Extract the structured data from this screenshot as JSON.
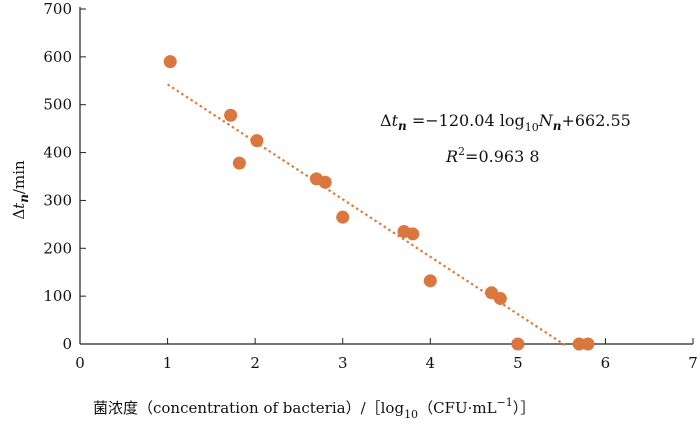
{
  "chart_data": {
    "type": "scatter",
    "xlim": [
      0,
      7
    ],
    "ylim": [
      0,
      700
    ],
    "x_ticks": [
      0,
      1,
      2,
      3,
      4,
      5,
      6,
      7
    ],
    "y_ticks": [
      0,
      100,
      200,
      300,
      400,
      500,
      600,
      700
    ],
    "ylabel": "Δtₙ/min",
    "xlabel": "菌浓度（concentration of bacteria）/［log₁₀（CFU·mL⁻¹）］",
    "points": [
      {
        "x": 1.03,
        "y": 590
      },
      {
        "x": 1.72,
        "y": 478
      },
      {
        "x": 1.82,
        "y": 378
      },
      {
        "x": 2.02,
        "y": 425
      },
      {
        "x": 2.7,
        "y": 345
      },
      {
        "x": 2.8,
        "y": 338
      },
      {
        "x": 3.0,
        "y": 265
      },
      {
        "x": 3.7,
        "y": 235
      },
      {
        "x": 3.8,
        "y": 230
      },
      {
        "x": 4.0,
        "y": 132
      },
      {
        "x": 4.7,
        "y": 107
      },
      {
        "x": 4.8,
        "y": 95
      },
      {
        "x": 5.0,
        "y": 0
      },
      {
        "x": 5.7,
        "y": 0
      },
      {
        "x": 5.8,
        "y": 0
      }
    ],
    "fit": {
      "slope": -120.04,
      "intercept": 662.55,
      "x_range": [
        1.0,
        5.55
      ]
    },
    "equation": "Δtₙ=−120.04 log₁₀Nₙ+662.55",
    "r_squared": "R²=0.963 8",
    "colors": {
      "point": "#D9773E",
      "fit_line": "#E07B39",
      "axis": "#222222"
    },
    "grid": false,
    "legend": "none"
  }
}
